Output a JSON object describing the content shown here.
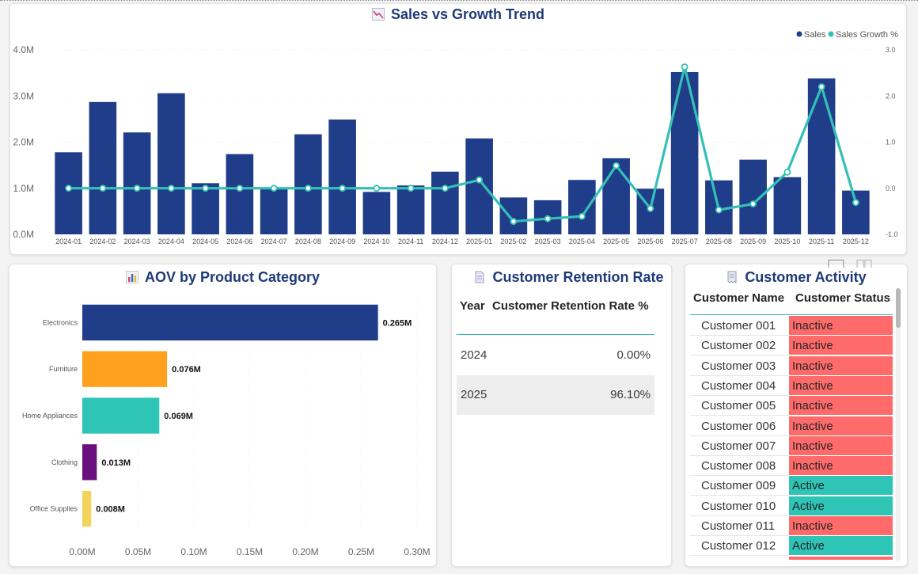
{
  "sales_chart": {
    "title": "Sales vs Growth Trend",
    "icon": "line-chart-icon",
    "legend": [
      {
        "label": "Sales",
        "color": "#203d8a"
      },
      {
        "label": "Sales Growth %",
        "color": "#34c0b6"
      }
    ]
  },
  "aov_chart": {
    "title": "AOV by Product Category",
    "icon": "bar-chart-icon"
  },
  "retention": {
    "title": "Customer Retention Rate",
    "icon": "document-icon",
    "columns": [
      "Year",
      "Customer Retention Rate %"
    ],
    "rows": [
      {
        "year": "2024",
        "rate": "0.00%"
      },
      {
        "year": "2025",
        "rate": "96.10%"
      }
    ]
  },
  "activity": {
    "title": "Customer Activity",
    "icon": "receipt-icon",
    "columns": [
      "Customer Name",
      "Customer Status"
    ],
    "status_colors": {
      "Active": "#2ec4b6",
      "Inactive": "#ff6b6b"
    },
    "rows": [
      {
        "name": "Customer 001",
        "status": "Inactive"
      },
      {
        "name": "Customer 002",
        "status": "Inactive"
      },
      {
        "name": "Customer 003",
        "status": "Inactive"
      },
      {
        "name": "Customer 004",
        "status": "Inactive"
      },
      {
        "name": "Customer 005",
        "status": "Inactive"
      },
      {
        "name": "Customer 006",
        "status": "Inactive"
      },
      {
        "name": "Customer 007",
        "status": "Inactive"
      },
      {
        "name": "Customer 008",
        "status": "Inactive"
      },
      {
        "name": "Customer 009",
        "status": "Active"
      },
      {
        "name": "Customer 010",
        "status": "Active"
      },
      {
        "name": "Customer 011",
        "status": "Inactive"
      },
      {
        "name": "Customer 012",
        "status": "Active"
      }
    ]
  },
  "chart_data": [
    {
      "type": "bar",
      "title": "Sales vs Growth Trend",
      "categories": [
        "2024-01",
        "2024-02",
        "2024-03",
        "2024-04",
        "2024-05",
        "2024-06",
        "2024-07",
        "2024-08",
        "2024-09",
        "2024-10",
        "2024-11",
        "2024-12",
        "2025-01",
        "2025-02",
        "2025-03",
        "2025-04",
        "2025-05",
        "2025-06",
        "2025-07",
        "2025-08",
        "2025-09",
        "2025-10",
        "2025-11",
        "2025-12"
      ],
      "series": [
        {
          "name": "Sales",
          "type": "bar",
          "axis": "left",
          "color": "#203d8a",
          "values": [
            1.78,
            2.87,
            2.21,
            3.06,
            1.11,
            1.74,
            0.98,
            2.17,
            2.49,
            0.92,
            1.06,
            1.36,
            2.08,
            0.8,
            0.74,
            1.18,
            1.65,
            0.99,
            3.52,
            1.17,
            1.62,
            1.24,
            3.38,
            0.95
          ]
        },
        {
          "name": "Sales Growth %",
          "type": "line",
          "axis": "right",
          "color": "#34c0b6",
          "values": [
            0,
            0,
            0,
            0,
            0,
            0,
            0,
            0,
            0,
            0,
            0,
            0,
            0.18,
            -0.72,
            -0.66,
            -0.61,
            0.49,
            -0.44,
            2.63,
            -0.47,
            -0.34,
            0.35,
            2.2,
            -0.31
          ]
        }
      ],
      "y_left": {
        "range": [
          0,
          4
        ],
        "ticks": [
          "0.0M",
          "1.0M",
          "2.0M",
          "3.0M",
          "4.0M"
        ]
      },
      "y_right": {
        "range": [
          -1,
          3
        ],
        "ticks": [
          "-1.0",
          "0.0",
          "1.0",
          "2.0",
          "3.0"
        ]
      },
      "legend_position": "top-right",
      "grid": true
    },
    {
      "type": "bar",
      "orientation": "horizontal",
      "title": "AOV by Product Category",
      "categories": [
        "Electronics",
        "Furniture",
        "Home Appliances",
        "Clothing",
        "Office Supplies"
      ],
      "values": [
        0.265,
        0.076,
        0.069,
        0.013,
        0.008
      ],
      "data_labels": [
        "0.265M",
        "0.076M",
        "0.069M",
        "0.013M",
        "0.008M"
      ],
      "colors": [
        "#203d8a",
        "#ffa11f",
        "#2ec4b6",
        "#6a0f7e",
        "#f2d45c"
      ],
      "x_range": [
        0,
        0.3
      ],
      "x_ticks": [
        "0.00M",
        "0.05M",
        "0.10M",
        "0.15M",
        "0.20M",
        "0.25M",
        "0.30M"
      ],
      "grid": true
    }
  ]
}
